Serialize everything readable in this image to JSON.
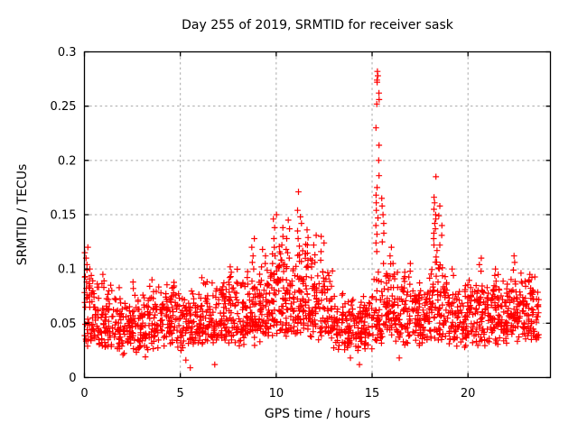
{
  "chart_data": {
    "type": "scatter",
    "title": "Day 255 of 2019, SRMTID for receiver sask",
    "xlabel": "GPS time / hours",
    "ylabel": "SRMTID / TECUs",
    "xlim": [
      0,
      24.3
    ],
    "ylim": [
      0,
      0.3
    ],
    "xticks": [
      0,
      5,
      10,
      15,
      20
    ],
    "yticks": [
      0,
      0.05,
      0.1,
      0.15,
      0.2,
      0.25,
      0.3
    ],
    "ytick_labels": [
      "0",
      "0.05",
      "0.1",
      "0.15",
      "0.2",
      "0.25",
      "0.3"
    ],
    "grid": true,
    "grid_color": "#a8a8a8",
    "border_color": "#000000",
    "background_color": "#ffffff",
    "marker": {
      "shape": "plus",
      "color": "#ff0000",
      "size": 7
    },
    "legend": "none",
    "seed": 20190255,
    "data_x_start": 0.0,
    "data_x_end": 23.7,
    "baseline_bins": [
      [
        0.0,
        0.5,
        0.05,
        0.095,
        44
      ],
      [
        0.5,
        1.0,
        0.047,
        0.09,
        40
      ],
      [
        1.0,
        1.5,
        0.044,
        0.08,
        40
      ],
      [
        1.5,
        2.0,
        0.045,
        0.085,
        40
      ],
      [
        2.0,
        2.5,
        0.04,
        0.075,
        40
      ],
      [
        2.5,
        3.0,
        0.042,
        0.08,
        40
      ],
      [
        3.0,
        3.5,
        0.044,
        0.08,
        40
      ],
      [
        3.5,
        4.0,
        0.048,
        0.085,
        40
      ],
      [
        4.0,
        4.5,
        0.048,
        0.08,
        40
      ],
      [
        4.5,
        5.0,
        0.05,
        0.085,
        40
      ],
      [
        5.0,
        5.5,
        0.044,
        0.08,
        40
      ],
      [
        5.5,
        6.0,
        0.042,
        0.09,
        40
      ],
      [
        6.0,
        6.5,
        0.048,
        0.09,
        40
      ],
      [
        6.5,
        7.0,
        0.05,
        0.09,
        40
      ],
      [
        7.0,
        7.5,
        0.052,
        0.1,
        44
      ],
      [
        7.5,
        8.0,
        0.055,
        0.105,
        44
      ],
      [
        8.0,
        8.5,
        0.05,
        0.09,
        42
      ],
      [
        8.5,
        9.0,
        0.052,
        0.11,
        44
      ],
      [
        9.0,
        9.5,
        0.058,
        0.115,
        46
      ],
      [
        9.5,
        10.0,
        0.062,
        0.13,
        46
      ],
      [
        10.0,
        10.5,
        0.068,
        0.13,
        46
      ],
      [
        10.5,
        11.0,
        0.065,
        0.125,
        46
      ],
      [
        11.0,
        11.5,
        0.068,
        0.14,
        46
      ],
      [
        11.5,
        12.0,
        0.065,
        0.13,
        46
      ],
      [
        12.0,
        12.5,
        0.06,
        0.12,
        44
      ],
      [
        12.5,
        13.0,
        0.055,
        0.11,
        42
      ],
      [
        13.0,
        13.5,
        0.045,
        0.08,
        40
      ],
      [
        13.5,
        14.0,
        0.04,
        0.075,
        40
      ],
      [
        14.0,
        14.5,
        0.04,
        0.08,
        40
      ],
      [
        14.5,
        15.0,
        0.045,
        0.085,
        40
      ],
      [
        15.0,
        15.5,
        0.055,
        0.12,
        44
      ],
      [
        15.5,
        16.0,
        0.06,
        0.13,
        44
      ],
      [
        16.0,
        16.5,
        0.055,
        0.11,
        42
      ],
      [
        16.5,
        17.0,
        0.053,
        0.105,
        42
      ],
      [
        17.0,
        17.5,
        0.052,
        0.1,
        42
      ],
      [
        17.5,
        18.0,
        0.05,
        0.1,
        42
      ],
      [
        18.0,
        18.5,
        0.058,
        0.12,
        44
      ],
      [
        18.5,
        19.0,
        0.058,
        0.115,
        44
      ],
      [
        19.0,
        19.5,
        0.05,
        0.1,
        42
      ],
      [
        19.5,
        20.0,
        0.05,
        0.095,
        42
      ],
      [
        20.0,
        20.5,
        0.05,
        0.1,
        42
      ],
      [
        20.5,
        21.0,
        0.053,
        0.105,
        44
      ],
      [
        21.0,
        21.5,
        0.05,
        0.1,
        44
      ],
      [
        21.5,
        22.0,
        0.053,
        0.1,
        44
      ],
      [
        22.0,
        22.5,
        0.055,
        0.105,
        46
      ],
      [
        22.5,
        23.0,
        0.054,
        0.1,
        46
      ],
      [
        23.0,
        23.4,
        0.052,
        0.095,
        36
      ],
      [
        23.4,
        23.7,
        0.05,
        0.09,
        26
      ]
    ],
    "spike_columns": [
      {
        "x": 0.08,
        "j": 0.1,
        "ys": [
          0.12,
          0.115,
          0.11,
          0.104,
          0.099,
          0.093,
          0.088
        ]
      },
      {
        "x": 0.35,
        "j": 0.1,
        "ys": [
          0.1,
          0.094,
          0.089
        ]
      },
      {
        "x": 1.0,
        "j": 0.08,
        "ys": [
          0.095,
          0.089,
          0.083
        ]
      },
      {
        "x": 1.4,
        "j": 0.08,
        "ys": [
          0.085,
          0.08
        ]
      },
      {
        "x": 2.0,
        "j": 0.05,
        "ys": [
          0.021
        ]
      },
      {
        "x": 2.5,
        "j": 0.08,
        "ys": [
          0.088,
          0.082
        ]
      },
      {
        "x": 3.2,
        "j": 0.05,
        "ys": [
          0.019
        ]
      },
      {
        "x": 3.45,
        "j": 0.08,
        "ys": [
          0.09,
          0.084
        ]
      },
      {
        "x": 4.6,
        "j": 0.08,
        "ys": [
          0.083,
          0.078
        ]
      },
      {
        "x": 5.3,
        "j": 0.05,
        "ys": [
          0.016
        ]
      },
      {
        "x": 5.55,
        "j": 0.05,
        "ys": [
          0.009
        ]
      },
      {
        "x": 6.2,
        "j": 0.08,
        "ys": [
          0.092,
          0.087
        ]
      },
      {
        "x": 6.75,
        "j": 0.05,
        "ys": [
          0.012
        ]
      },
      {
        "x": 7.6,
        "j": 0.1,
        "ys": [
          0.102,
          0.097,
          0.093
        ]
      },
      {
        "x": 8.8,
        "j": 0.1,
        "ys": [
          0.128,
          0.12,
          0.112,
          0.106,
          0.1
        ]
      },
      {
        "x": 9.35,
        "j": 0.1,
        "ys": [
          0.118,
          0.112,
          0.105
        ]
      },
      {
        "x": 9.9,
        "j": 0.12,
        "ys": [
          0.15,
          0.146,
          0.138,
          0.128,
          0.12,
          0.112,
          0.105
        ]
      },
      {
        "x": 10.3,
        "j": 0.1,
        "ys": [
          0.138,
          0.13,
          0.122,
          0.114,
          0.108
        ]
      },
      {
        "x": 10.6,
        "j": 0.1,
        "ys": [
          0.145,
          0.137,
          0.128,
          0.118,
          0.11
        ]
      },
      {
        "x": 11.2,
        "j": 0.12,
        "ys": [
          0.171,
          0.154,
          0.148,
          0.142,
          0.135,
          0.128,
          0.121,
          0.113,
          0.107
        ]
      },
      {
        "x": 11.6,
        "j": 0.1,
        "ys": [
          0.136,
          0.129,
          0.122,
          0.114,
          0.108
        ]
      },
      {
        "x": 12.0,
        "j": 0.1,
        "ys": [
          0.131,
          0.122,
          0.113,
          0.106
        ]
      },
      {
        "x": 12.4,
        "j": 0.1,
        "ys": [
          0.13,
          0.124,
          0.116,
          0.108
        ]
      },
      {
        "x": 13.9,
        "j": 0.05,
        "ys": [
          0.018
        ]
      },
      {
        "x": 14.35,
        "j": 0.05,
        "ys": [
          0.012
        ]
      },
      {
        "x": 15.28,
        "j": 0.09,
        "ys": [
          0.282,
          0.278,
          0.274,
          0.272,
          0.262,
          0.256,
          0.252,
          0.23,
          0.214,
          0.2,
          0.186,
          0.175,
          0.168,
          0.161,
          0.154,
          0.147,
          0.14,
          0.132,
          0.124,
          0.116
        ]
      },
      {
        "x": 15.55,
        "j": 0.1,
        "ys": [
          0.165,
          0.158,
          0.15,
          0.142,
          0.133,
          0.125
        ]
      },
      {
        "x": 16.0,
        "j": 0.1,
        "ys": [
          0.12,
          0.112,
          0.105
        ]
      },
      {
        "x": 16.4,
        "j": 0.05,
        "ys": [
          0.018
        ]
      },
      {
        "x": 17.0,
        "j": 0.08,
        "ys": [
          0.105,
          0.098
        ]
      },
      {
        "x": 18.3,
        "j": 0.1,
        "ys": [
          0.185,
          0.166,
          0.161,
          0.155,
          0.15,
          0.146,
          0.142,
          0.137,
          0.133,
          0.128,
          0.122,
          0.117,
          0.111
        ]
      },
      {
        "x": 18.55,
        "j": 0.1,
        "ys": [
          0.158,
          0.149,
          0.14,
          0.131,
          0.122
        ]
      },
      {
        "x": 19.2,
        "j": 0.08,
        "ys": [
          0.1,
          0.094
        ]
      },
      {
        "x": 20.6,
        "j": 0.1,
        "ys": [
          0.11,
          0.104,
          0.098
        ]
      },
      {
        "x": 21.4,
        "j": 0.08,
        "ys": [
          0.1,
          0.094
        ]
      },
      {
        "x": 22.4,
        "j": 0.1,
        "ys": [
          0.112,
          0.106,
          0.099
        ]
      },
      {
        "x": 23.2,
        "j": 0.08,
        "ys": [
          0.095,
          0.09
        ]
      }
    ]
  }
}
